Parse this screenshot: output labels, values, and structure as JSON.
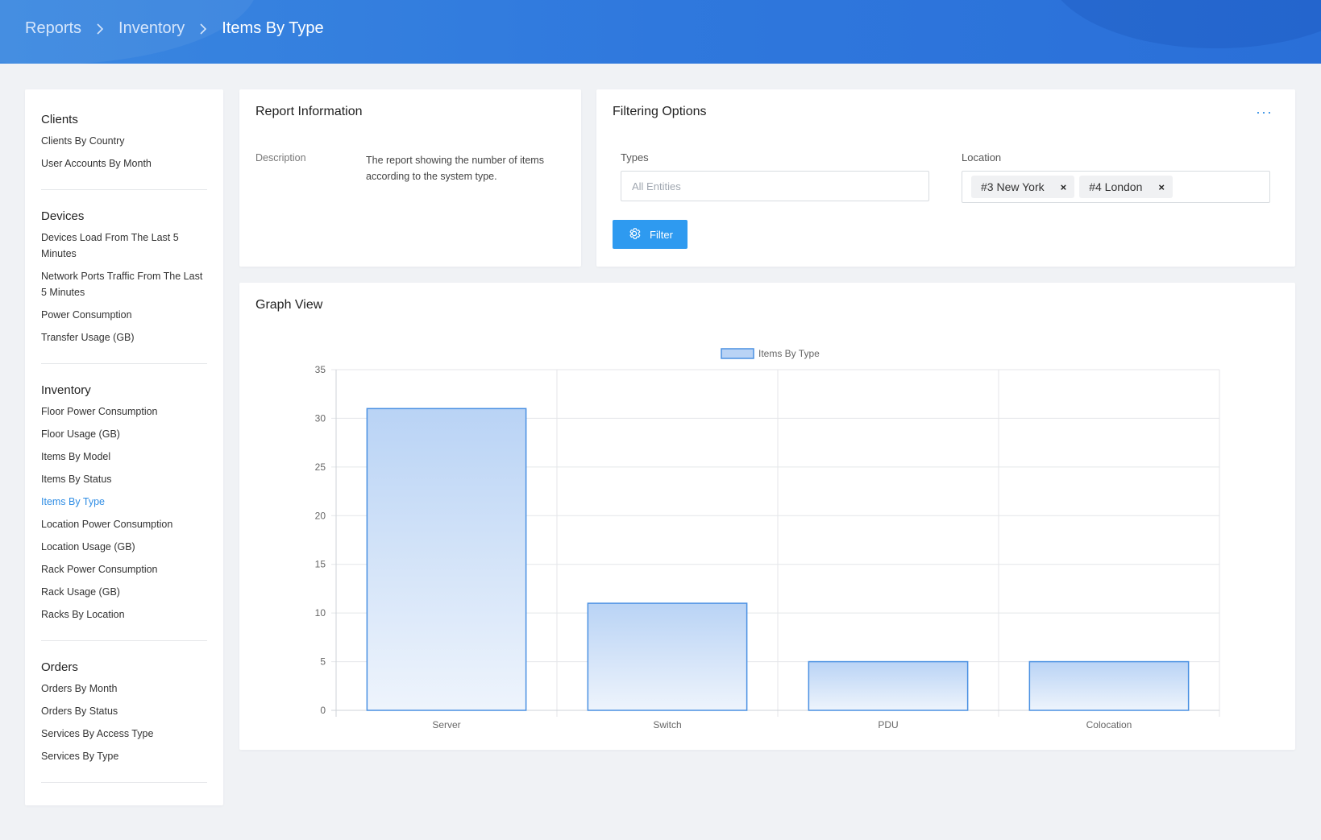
{
  "header": {
    "breadcrumb": [
      "Reports",
      "Inventory",
      "Items By Type"
    ]
  },
  "sidebar": {
    "sections": [
      {
        "heading": "Clients",
        "items": [
          "Clients By Country",
          "User Accounts By Month"
        ]
      },
      {
        "heading": "Devices",
        "items": [
          "Devices Load From The Last 5 Minutes",
          "Network Ports Traffic From The Last 5 Minutes",
          "Power Consumption",
          "Transfer Usage (GB)"
        ]
      },
      {
        "heading": "Inventory",
        "items": [
          "Floor Power Consumption",
          "Floor Usage (GB)",
          "Items By Model",
          "Items By Status",
          "Items By Type",
          "Location Power Consumption",
          "Location Usage (GB)",
          "Rack Power Consumption",
          "Rack Usage (GB)",
          "Racks By Location"
        ]
      },
      {
        "heading": "Orders",
        "items": [
          "Orders By Month",
          "Orders By Status",
          "Services By Access Type",
          "Services By Type"
        ]
      }
    ],
    "active_item": "Items By Type"
  },
  "report_info": {
    "title": "Report Information",
    "description_label": "Description",
    "description_text": "The report showing the number of items according to the system type."
  },
  "filtering": {
    "title": "Filtering Options",
    "more_icon": "more-dots-icon",
    "types_label": "Types",
    "types_placeholder": "All Entities",
    "location_label": "Location",
    "location_tags": [
      "#3 New York",
      "#4 London"
    ],
    "remove_symbol": "×",
    "filter_button": "Filter",
    "filter_icon": "gear-icon",
    "accent_color": "#2e9af0"
  },
  "graph": {
    "title": "Graph View"
  },
  "chart_data": {
    "type": "bar",
    "categories": [
      "Server",
      "Switch",
      "PDU",
      "Colocation"
    ],
    "series": [
      {
        "name": "Items By Type",
        "values": [
          31,
          11,
          5,
          5
        ]
      }
    ],
    "ylim": [
      0,
      35
    ],
    "yticks": [
      0,
      5,
      10,
      15,
      20,
      25,
      30,
      35
    ],
    "grid": true,
    "legend": "top-center",
    "bar_fill_top": "#b9d3f5",
    "bar_fill_bottom": "#eef4fc",
    "bar_stroke": "#4a90e2",
    "legend_fill": "#b9d3f5"
  }
}
